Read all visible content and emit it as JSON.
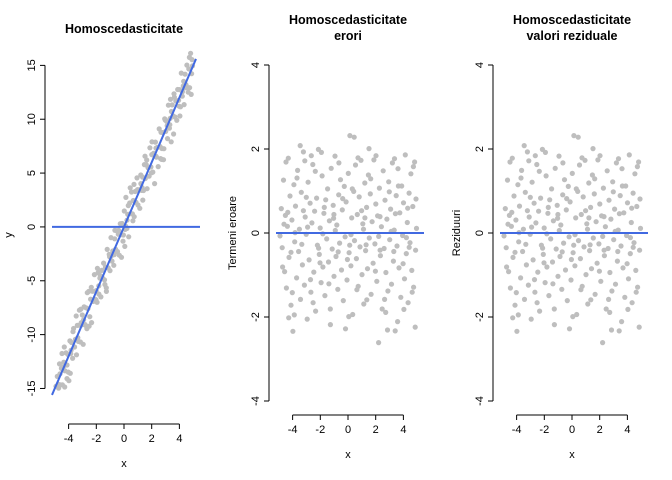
{
  "chart_data": [
    {
      "type": "scatter",
      "title": "Homoscedasticitate",
      "xlabel": "x",
      "ylabel": "y",
      "xlim": [
        -5.2,
        5.2
      ],
      "ylim": [
        -17,
        15.5
      ],
      "xticks": [
        "-4",
        "-2",
        "0",
        "2",
        "4"
      ],
      "xtick_values": [
        -4,
        -2,
        0,
        2,
        4
      ],
      "yticks": [
        "-15",
        "-10",
        "-5",
        "0",
        "5",
        "10",
        "15"
      ],
      "ytick_values": [
        -15,
        -10,
        -5,
        0,
        5,
        10,
        15
      ],
      "point_color": "#bebebe",
      "line_color": "#4169e1",
      "fit_line": {
        "intercept": 0,
        "slope": 3
      },
      "hline": 0,
      "points": []
    },
    {
      "type": "scatter",
      "title": "Homoscedasticitate\nerori",
      "xlabel": "x",
      "ylabel": "Termeni eroare",
      "xlim": [
        -5.2,
        5.2
      ],
      "ylim": [
        -4,
        4
      ],
      "xticks": [
        "-4",
        "-2",
        "0",
        "2",
        "4"
      ],
      "xtick_values": [
        -4,
        -2,
        0,
        2,
        4
      ],
      "yticks": [
        "-4",
        "-2",
        "0",
        "2",
        "4"
      ],
      "ytick_values": [
        -4,
        -2,
        0,
        2,
        4
      ],
      "point_color": "#bebebe",
      "line_color": "#4169e1",
      "hline": 0,
      "points": []
    },
    {
      "type": "scatter",
      "title": "Homoscedasticitate\nvalori reziduale",
      "xlabel": "x",
      "ylabel": "Reziduuri",
      "xlim": [
        -5.2,
        5.2
      ],
      "ylim": [
        -4,
        4
      ],
      "xticks": [
        "-4",
        "-2",
        "0",
        "2",
        "4"
      ],
      "xtick_values": [
        -4,
        -2,
        0,
        2,
        4
      ],
      "yticks": [
        "-4",
        "-2",
        "0",
        "2",
        "4"
      ],
      "ytick_values": [
        -4,
        -2,
        0,
        2,
        4
      ],
      "point_color": "#bebebe",
      "line_color": "#4169e1",
      "hline": 0,
      "points": []
    }
  ],
  "series_points": [
    [
      -4.91,
      -0.07
    ],
    [
      -4.82,
      0.58
    ],
    [
      -4.75,
      -0.35
    ],
    [
      -4.66,
      1.26
    ],
    [
      -4.58,
      -0.92
    ],
    [
      -4.52,
      0.42
    ],
    [
      -4.45,
      -1.31
    ],
    [
      -4.38,
      0.16
    ],
    [
      -4.31,
      1.78
    ],
    [
      -4.26,
      -0.58
    ],
    [
      -4.19,
      0.88
    ],
    [
      -4.12,
      -1.72
    ],
    [
      -4.05,
      0.31
    ],
    [
      -3.98,
      -2.34
    ],
    [
      -3.91,
      1.15
    ],
    [
      -3.85,
      -0.21
    ],
    [
      -3.79,
      0.64
    ],
    [
      -3.71,
      -1.07
    ],
    [
      -3.64,
      1.49
    ],
    [
      -3.57,
      -0.44
    ],
    [
      -3.51,
      0.09
    ],
    [
      -3.43,
      -1.58
    ],
    [
      -3.37,
      0.97
    ],
    [
      -3.29,
      -0.76
    ],
    [
      -3.22,
      1.93
    ],
    [
      -3.15,
      -1.24
    ],
    [
      -3.09,
      0.38
    ],
    [
      -3.02,
      -0.03
    ],
    [
      -2.95,
      -2.05
    ],
    [
      -2.88,
      1.21
    ],
    [
      -2.81,
      -0.64
    ],
    [
      -2.74,
      0.71
    ],
    [
      -2.68,
      -1.41
    ],
    [
      -2.61,
      0.24
    ],
    [
      -2.54,
      1.63
    ],
    [
      -2.47,
      -0.93
    ],
    [
      -2.41,
      0.52
    ],
    [
      -2.34,
      -1.86
    ],
    [
      -2.27,
      0.83
    ],
    [
      -2.21,
      -0.29
    ],
    [
      -2.14,
      1.99
    ],
    [
      -2.07,
      -0.51
    ],
    [
      -2.01,
      0.12
    ],
    [
      -1.94,
      -1.18
    ],
    [
      -1.87,
      1.36
    ],
    [
      -1.81,
      -0.81
    ],
    [
      -1.74,
      0.47
    ],
    [
      -1.67,
      -1.49
    ],
    [
      -1.61,
      0.79
    ],
    [
      -1.54,
      -0.14
    ],
    [
      -1.47,
      1.05
    ],
    [
      -1.41,
      -0.69
    ],
    [
      -1.34,
      0.29
    ],
    [
      -1.27,
      -2.18
    ],
    [
      -1.21,
      1.54
    ],
    [
      -1.14,
      -0.38
    ],
    [
      -1.07,
      0.66
    ],
    [
      -1.01,
      -1.03
    ],
    [
      -0.94,
      1.83
    ],
    [
      -0.87,
      -0.56
    ],
    [
      -0.81,
      0.19
    ],
    [
      -0.74,
      -1.34
    ],
    [
      -0.67,
      0.91
    ],
    [
      -0.61,
      -0.24
    ],
    [
      -0.54,
      1.27
    ],
    [
      -0.47,
      -0.88
    ],
    [
      -0.41,
      0.55
    ],
    [
      -0.34,
      -1.61
    ],
    [
      -0.27,
      1.11
    ],
    [
      -0.21,
      -0.09
    ],
    [
      -0.14,
      0.74
    ],
    [
      -0.07,
      -1.12
    ],
    [
      0.02,
      1.42
    ],
    [
      0.08,
      -0.47
    ],
    [
      0.14,
      2.32
    ],
    [
      0.21,
      -0.78
    ],
    [
      0.27,
      0.36
    ],
    [
      0.34,
      -1.94
    ],
    [
      0.41,
      0.99
    ],
    [
      0.47,
      -0.18
    ],
    [
      0.54,
      1.62
    ],
    [
      0.61,
      -0.61
    ],
    [
      0.67,
      0.44
    ],
    [
      0.74,
      -1.27
    ],
    [
      0.81,
      0.86
    ],
    [
      0.87,
      -0.33
    ],
    [
      0.94,
      1.73
    ],
    [
      1.01,
      -0.99
    ],
    [
      1.07,
      0.22
    ],
    [
      1.14,
      -1.69
    ],
    [
      1.21,
      1.19
    ],
    [
      1.27,
      -0.42
    ],
    [
      1.34,
      0.61
    ],
    [
      1.41,
      -0.85
    ],
    [
      1.47,
      1.38
    ],
    [
      1.54,
      -0.12
    ],
    [
      1.61,
      0.93
    ],
    [
      1.67,
      -1.46
    ],
    [
      1.74,
      0.27
    ],
    [
      1.81,
      -0.72
    ],
    [
      1.87,
      1.74
    ],
    [
      1.94,
      -0.26
    ],
    [
      2.01,
      0.69
    ],
    [
      2.08,
      -1.15
    ],
    [
      2.14,
      0.41
    ],
    [
      2.21,
      -2.61
    ],
    [
      2.27,
      1.07
    ],
    [
      2.34,
      -0.54
    ],
    [
      2.41,
      0.15
    ],
    [
      2.47,
      -1.81
    ],
    [
      2.54,
      1.48
    ],
    [
      2.61,
      -0.37
    ],
    [
      2.67,
      0.78
    ],
    [
      2.74,
      -0.94
    ],
    [
      2.81,
      0.33
    ],
    [
      2.88,
      -1.38
    ],
    [
      2.94,
      1.22
    ],
    [
      3.01,
      -0.16
    ],
    [
      3.08,
      0.57
    ],
    [
      3.14,
      -1.22
    ],
    [
      3.21,
      1.67
    ],
    [
      3.28,
      -0.67
    ],
    [
      3.34,
      0.07
    ],
    [
      3.41,
      -2.33
    ],
    [
      3.48,
      0.89
    ],
    [
      3.54,
      -0.31
    ],
    [
      3.61,
      1.53
    ],
    [
      3.68,
      -0.83
    ],
    [
      3.74,
      0.48
    ],
    [
      3.81,
      -1.53
    ],
    [
      3.88,
      1.12
    ],
    [
      3.94,
      -0.06
    ],
    [
      4.01,
      0.72
    ],
    [
      4.08,
      -1.09
    ],
    [
      4.14,
      1.86
    ],
    [
      4.21,
      -0.49
    ],
    [
      4.28,
      0.25
    ],
    [
      4.34,
      -1.66
    ],
    [
      4.41,
      0.95
    ],
    [
      4.48,
      -0.23
    ],
    [
      4.54,
      1.41
    ],
    [
      4.61,
      -0.89
    ],
    [
      4.68,
      0.63
    ],
    [
      4.74,
      -1.29
    ],
    [
      4.81,
      1.69
    ],
    [
      4.88,
      -0.41
    ],
    [
      4.95,
      0.11
    ],
    [
      -4.72,
      -0.81
    ],
    [
      -4.35,
      0.49
    ],
    [
      -4.02,
      -1.42
    ],
    [
      -3.68,
      1.31
    ],
    [
      -3.34,
      -0.27
    ],
    [
      -3.01,
      0.85
    ],
    [
      -2.71,
      -1.11
    ],
    [
      -2.36,
      1.47
    ],
    [
      -2.02,
      -0.71
    ],
    [
      -1.71,
      0.61
    ],
    [
      -1.38,
      -1.21
    ],
    [
      -1.04,
      0.35
    ],
    [
      -0.71,
      -0.45
    ],
    [
      -0.38,
      0.82
    ],
    [
      -0.04,
      -0.63
    ],
    [
      0.31,
      1.05
    ],
    [
      0.64,
      -1.35
    ],
    [
      0.98,
      0.53
    ],
    [
      1.31,
      -0.28
    ],
    [
      1.64,
      1.29
    ],
    [
      1.98,
      -0.91
    ],
    [
      2.31,
      0.39
    ],
    [
      2.64,
      -1.58
    ],
    [
      2.98,
      0.98
    ],
    [
      3.31,
      -0.44
    ],
    [
      3.64,
      1.12
    ],
    [
      3.98,
      -0.73
    ],
    [
      4.31,
      0.59
    ],
    [
      4.64,
      -1.41
    ],
    [
      4.91,
      0.81
    ],
    [
      -4.48,
      1.69
    ],
    [
      -3.88,
      -1.95
    ],
    [
      -3.12,
      1.72
    ],
    [
      -2.52,
      -1.66
    ],
    [
      -1.92,
      1.92
    ],
    [
      -1.28,
      -1.81
    ],
    [
      -0.66,
      1.67
    ],
    [
      0.06,
      -1.99
    ],
    [
      0.72,
      1.79
    ],
    [
      1.36,
      -1.59
    ],
    [
      2.02,
      1.84
    ],
    [
      2.72,
      -1.89
    ],
    [
      3.36,
      1.77
    ],
    [
      4.04,
      -1.82
    ],
    [
      4.72,
      1.58
    ],
    [
      -4.62,
      0.21
    ],
    [
      -3.82,
      0.01
    ],
    [
      -2.92,
      0.14
    ],
    [
      -1.82,
      -0.02
    ],
    [
      -0.92,
      0.06
    ],
    [
      0.22,
      -0.04
    ],
    [
      1.12,
      0.09
    ],
    [
      2.22,
      -0.08
    ],
    [
      3.12,
      0.04
    ],
    [
      4.22,
      -0.11
    ],
    [
      -4.12,
      -0.46
    ],
    [
      -3.22,
      0.53
    ],
    [
      -2.12,
      -0.36
    ],
    [
      -1.02,
      0.44
    ],
    [
      0.12,
      -0.29
    ],
    [
      1.22,
      0.36
    ],
    [
      2.32,
      -0.41
    ],
    [
      3.42,
      0.46
    ],
    [
      4.42,
      -0.34
    ],
    [
      -4.28,
      -2.02
    ],
    [
      -2.65,
      1.84
    ],
    [
      -0.18,
      -2.28
    ],
    [
      1.52,
      2.01
    ],
    [
      3.58,
      -2.11
    ],
    [
      -3.45,
      2.08
    ],
    [
      0.45,
      2.28
    ],
    [
      2.85,
      -2.31
    ],
    [
      4.85,
      -2.24
    ]
  ]
}
